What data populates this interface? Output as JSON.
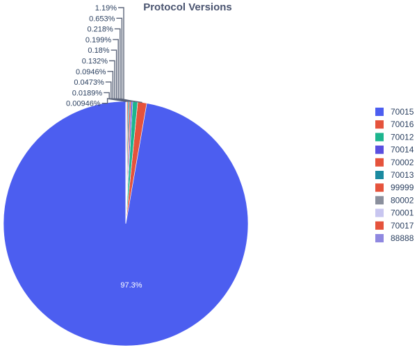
{
  "chart_data": {
    "type": "pie",
    "title": "Protocol Versions",
    "labels": [
      "70015",
      "70016",
      "70012",
      "70014",
      "70002",
      "70013",
      "99999",
      "80002",
      "70001",
      "70017",
      "88888"
    ],
    "values": [
      97.3,
      1.19,
      0.653,
      0.218,
      0.199,
      0.18,
      0.132,
      0.0946,
      0.0473,
      0.0189,
      0.00946
    ],
    "text_labels": [
      "97.3%",
      "1.19%",
      "0.653%",
      "0.218%",
      "0.199%",
      "0.18%",
      "0.132%",
      "0.0946%",
      "0.0473%",
      "0.0189%",
      "0.00946%"
    ],
    "colors": [
      "#4c5ef0",
      "#e5533c",
      "#1db58e",
      "#5a4fe0",
      "#e5533c",
      "#1b8aa0",
      "#e5533c",
      "#8a8f9c",
      "#c8c6f0",
      "#e5533c",
      "#8f88e0"
    ],
    "legend_placement": "right"
  }
}
